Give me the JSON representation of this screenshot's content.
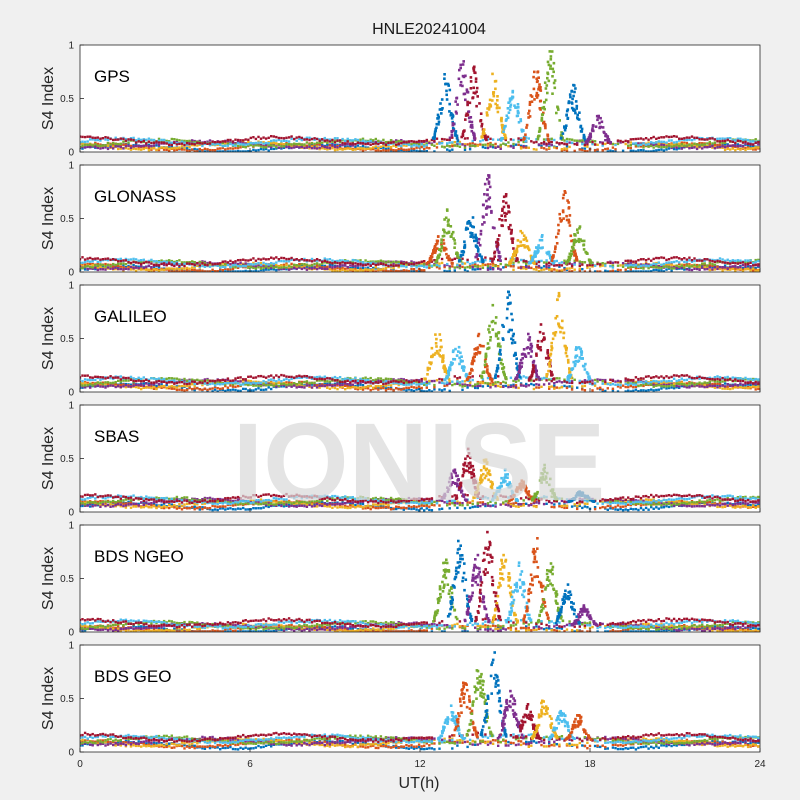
{
  "chart_data": {
    "type": "scatter",
    "title": "HNLE20241004",
    "xlabel": "UT(h)",
    "ylabel": "S4 Index",
    "xlim": [
      0,
      24
    ],
    "ylim": [
      0,
      1
    ],
    "x_ticks": [
      "0",
      "6",
      "12",
      "18",
      "24"
    ],
    "y_ticks": [
      "0",
      "0.5",
      "1"
    ],
    "grid": false,
    "watermark": "IONISE",
    "series_colors": [
      "#0072BD",
      "#D95319",
      "#EDB120",
      "#7E2F8E",
      "#77AC30",
      "#4DBEEE",
      "#A2142F"
    ],
    "panels": [
      {
        "name": "GPS",
        "baseline": 0.07,
        "scint_window": [
          12.3,
          19.6
        ],
        "peaks": [
          {
            "t": 12.9,
            "v": 0.75
          },
          {
            "t": 13.5,
            "v": 0.9
          },
          {
            "t": 13.9,
            "v": 0.8
          },
          {
            "t": 14.6,
            "v": 0.75
          },
          {
            "t": 15.3,
            "v": 0.65
          },
          {
            "t": 16.1,
            "v": 0.8
          },
          {
            "t": 16.6,
            "v": 1.0
          },
          {
            "t": 17.4,
            "v": 0.65
          },
          {
            "t": 18.3,
            "v": 0.35
          }
        ]
      },
      {
        "name": "GLONASS",
        "baseline": 0.06,
        "scint_window": [
          12.2,
          19.2
        ],
        "peaks": [
          {
            "t": 12.7,
            "v": 0.35
          },
          {
            "t": 13.0,
            "v": 0.6
          },
          {
            "t": 13.8,
            "v": 0.55
          },
          {
            "t": 14.4,
            "v": 0.95
          },
          {
            "t": 15.0,
            "v": 0.75
          },
          {
            "t": 15.6,
            "v": 0.4
          },
          {
            "t": 16.3,
            "v": 0.35
          },
          {
            "t": 17.1,
            "v": 0.85
          },
          {
            "t": 17.6,
            "v": 0.45
          }
        ]
      },
      {
        "name": "GALILEO",
        "baseline": 0.08,
        "scint_window": [
          12.0,
          19.2
        ],
        "peaks": [
          {
            "t": 12.6,
            "v": 0.6
          },
          {
            "t": 13.3,
            "v": 0.45
          },
          {
            "t": 14.1,
            "v": 0.55
          },
          {
            "t": 14.6,
            "v": 0.85
          },
          {
            "t": 15.1,
            "v": 0.95
          },
          {
            "t": 15.8,
            "v": 0.55
          },
          {
            "t": 16.3,
            "v": 0.65
          },
          {
            "t": 16.9,
            "v": 0.95
          },
          {
            "t": 17.6,
            "v": 0.45
          }
        ]
      },
      {
        "name": "SBAS",
        "baseline": 0.09,
        "scint_window": [
          12.5,
          18.5
        ],
        "peaks": [
          {
            "t": 13.2,
            "v": 0.4
          },
          {
            "t": 13.7,
            "v": 0.6
          },
          {
            "t": 14.3,
            "v": 0.5
          },
          {
            "t": 15.0,
            "v": 0.4
          },
          {
            "t": 15.6,
            "v": 0.3
          },
          {
            "t": 16.4,
            "v": 0.45
          },
          {
            "t": 17.7,
            "v": 0.2
          }
        ]
      },
      {
        "name": "BDS NGEO",
        "baseline": 0.05,
        "scint_window": [
          12.3,
          18.7
        ],
        "peaks": [
          {
            "t": 12.9,
            "v": 0.7
          },
          {
            "t": 13.4,
            "v": 0.9
          },
          {
            "t": 14.0,
            "v": 0.75
          },
          {
            "t": 14.4,
            "v": 0.95
          },
          {
            "t": 15.0,
            "v": 0.8
          },
          {
            "t": 15.5,
            "v": 0.65
          },
          {
            "t": 16.1,
            "v": 0.9
          },
          {
            "t": 16.6,
            "v": 0.7
          },
          {
            "t": 17.2,
            "v": 0.45
          },
          {
            "t": 17.8,
            "v": 0.25
          }
        ]
      },
      {
        "name": "BDS GEO",
        "baseline": 0.1,
        "scint_window": [
          12.5,
          18.8
        ],
        "peaks": [
          {
            "t": 13.1,
            "v": 0.45
          },
          {
            "t": 13.6,
            "v": 0.7
          },
          {
            "t": 14.1,
            "v": 0.85
          },
          {
            "t": 14.6,
            "v": 0.95
          },
          {
            "t": 15.2,
            "v": 0.6
          },
          {
            "t": 15.8,
            "v": 0.45
          },
          {
            "t": 16.4,
            "v": 0.55
          },
          {
            "t": 17.0,
            "v": 0.4
          },
          {
            "t": 17.6,
            "v": 0.35
          }
        ]
      }
    ]
  }
}
